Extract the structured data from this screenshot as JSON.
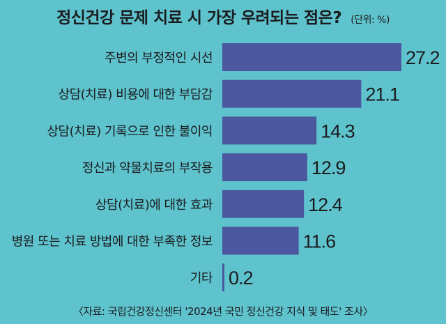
{
  "chart_data": {
    "type": "bar",
    "orientation": "horizontal",
    "title": "정신건강 문제 치료 시 가장 우려되는 점은?",
    "unit": "(단위: %)",
    "categories": [
      "주변의 부정적인 시선",
      "상담(치료) 비용에 대한 부담감",
      "상담(치료) 기록으로 인한 불이익",
      "정신과 약물치료의 부작용",
      "상담(치료)에 대한 효과",
      "병원 또는 치료 방법에 대한 부족한 정보",
      "기타"
    ],
    "values": [
      27.2,
      21.1,
      14.3,
      12.9,
      12.4,
      11.6,
      0.2
    ],
    "value_labels": [
      "27.2",
      "21.1",
      "14.3",
      "12.9",
      "12.4",
      "11.6",
      "0.2"
    ],
    "bar_color": "#4b58a0",
    "background_color": "#5ec3cc",
    "xlim": [
      0,
      27.2
    ],
    "grid": false,
    "legend": "none"
  },
  "source": "〈자료: 국립건강정신센터 '2024년 국민 정신건강 지식 및 태도' 조사〉"
}
